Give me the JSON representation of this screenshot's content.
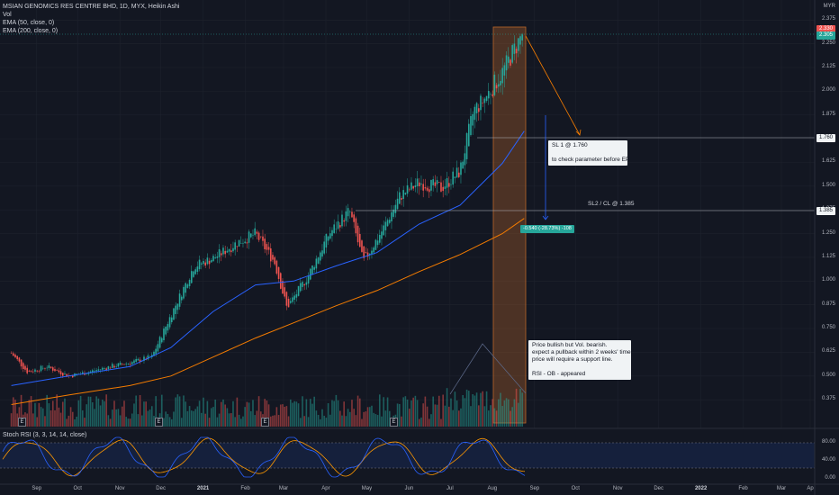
{
  "header": {
    "title": "MSIAN GENOMICS RES CENTRE BHD, 1D, MYX, Heikin Ashi",
    "vol": "Vol",
    "ema50": "EMA (50, close, 0)",
    "ema200": "EMA (200, close, 0)",
    "stoch": "Stoch RSI (3, 3, 14, 14, close)",
    "currency": "MYR"
  },
  "price_tags": {
    "current_high": "2.330",
    "current_low": "2.305",
    "sl1": "1.760",
    "sl2": "1.385"
  },
  "annotations": {
    "sl1": "SL 1 @ 1.760\n\nto check parameter before EP",
    "sl2": "SL2 / CL @ 1.385",
    "measure": "-0.540 (-28.73%) -108",
    "comment": "Price bullish but Vol. bearish.\nexpect a pullback within 2 weeks' time.\nprice will require a support line.\n\nRSI - OB - appeared"
  },
  "earnings_marker": "E",
  "colors": {
    "bg": "#131722",
    "up": "#26a69a",
    "down": "#ef5350",
    "ema50": "#2962ff",
    "ema200": "#f57c00",
    "box": "#b8652a",
    "rsi_k": "#2962ff",
    "rsi_d": "#ff9800"
  },
  "chart_data": {
    "type": "candlestick",
    "x_axis": {
      "ticks": [
        "Sep",
        "Oct",
        "Nov",
        "Dec",
        "2021",
        "Feb",
        "Mar",
        "Apr",
        "May",
        "Jun",
        "Jul",
        "Aug",
        "Sep",
        "Oct",
        "Nov",
        "Dec",
        "2022",
        "Feb",
        "Mar",
        "Ap"
      ]
    },
    "y_axis": {
      "ticks": [
        "2.375",
        "2.250",
        "2.125",
        "2.000",
        "1.875",
        "1.750",
        "1.625",
        "1.500",
        "1.375",
        "1.250",
        "1.125",
        "1.000",
        "0.875",
        "0.750",
        "0.625",
        "0.500",
        "0.375"
      ],
      "min": 0.3,
      "max": 2.4
    },
    "series": [
      {
        "name": "Heikin Ashi",
        "points": [
          [
            "2020-08-20",
            0.62
          ],
          [
            "2020-09-01",
            0.52
          ],
          [
            "2020-09-15",
            0.55
          ],
          [
            "2020-10-01",
            0.5
          ],
          [
            "2020-10-15",
            0.52
          ],
          [
            "2020-11-01",
            0.55
          ],
          [
            "2020-11-15",
            0.57
          ],
          [
            "2020-12-01",
            0.6
          ],
          [
            "2020-12-15",
            0.82
          ],
          [
            "2021-01-01",
            1.08
          ],
          [
            "2021-01-15",
            1.12
          ],
          [
            "2021-02-01",
            1.2
          ],
          [
            "2021-02-15",
            1.25
          ],
          [
            "2021-03-01",
            1.1
          ],
          [
            "2021-03-10",
            0.86
          ],
          [
            "2021-03-25",
            1.02
          ],
          [
            "2021-04-10",
            1.25
          ],
          [
            "2021-04-25",
            1.37
          ],
          [
            "2021-05-05",
            1.1
          ],
          [
            "2021-05-20",
            1.28
          ],
          [
            "2021-06-01",
            1.45
          ],
          [
            "2021-06-15",
            1.52
          ],
          [
            "2021-07-01",
            1.49
          ],
          [
            "2021-07-15",
            1.58
          ],
          [
            "2021-07-25",
            1.9
          ],
          [
            "2021-08-01",
            1.95
          ],
          [
            "2021-08-15",
            2.1
          ],
          [
            "2021-08-31",
            2.32
          ]
        ]
      },
      {
        "name": "EMA 50",
        "points": [
          [
            "2020-08-20",
            0.45
          ],
          [
            "2020-10-01",
            0.5
          ],
          [
            "2020-11-15",
            0.55
          ],
          [
            "2020-12-15",
            0.65
          ],
          [
            "2021-01-15",
            0.84
          ],
          [
            "2021-02-15",
            0.98
          ],
          [
            "2021-03-15",
            1.0
          ],
          [
            "2021-04-15",
            1.08
          ],
          [
            "2021-05-15",
            1.15
          ],
          [
            "2021-06-15",
            1.3
          ],
          [
            "2021-07-15",
            1.4
          ],
          [
            "2021-08-15",
            1.62
          ],
          [
            "2021-08-31",
            1.79
          ]
        ]
      },
      {
        "name": "EMA 200",
        "points": [
          [
            "2020-08-20",
            0.35
          ],
          [
            "2020-10-01",
            0.4
          ],
          [
            "2020-11-15",
            0.45
          ],
          [
            "2020-12-15",
            0.5
          ],
          [
            "2021-01-15",
            0.6
          ],
          [
            "2021-02-15",
            0.7
          ],
          [
            "2021-03-15",
            0.78
          ],
          [
            "2021-04-15",
            0.87
          ],
          [
            "2021-05-15",
            0.95
          ],
          [
            "2021-06-15",
            1.05
          ],
          [
            "2021-07-15",
            1.14
          ],
          [
            "2021-08-15",
            1.25
          ],
          [
            "2021-08-31",
            1.33
          ]
        ]
      }
    ],
    "horizontal_lines": [
      {
        "label": "SL 1",
        "value": 1.76
      },
      {
        "label": "SL2 / CL",
        "value": 1.385
      }
    ],
    "stoch_rsi": {
      "levels": [
        80,
        40,
        0
      ],
      "tick_labels": [
        "80.00",
        "40.00",
        "0.00"
      ]
    }
  }
}
